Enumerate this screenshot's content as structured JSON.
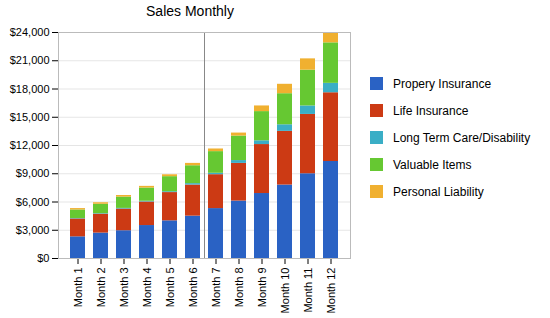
{
  "chart_data": {
    "type": "bar",
    "title": "Sales Monthly",
    "stacked": true,
    "grid": true,
    "legend": "right",
    "categories": [
      "Month 1",
      "Month 2",
      "Month 3",
      "Month 4",
      "Month 5",
      "Month 6",
      "Month 7",
      "Month 8",
      "Month 9",
      "Month 10",
      "Month 11",
      "Month 12"
    ],
    "series": [
      {
        "name": "Propery Insurance",
        "color": "#2a62c4",
        "values": [
          2300,
          2700,
          2950,
          3500,
          4000,
          4500,
          5300,
          6100,
          6900,
          7800,
          9000,
          10300
        ]
      },
      {
        "name": "Life Insurance",
        "color": "#cc3a14",
        "values": [
          1900,
          2000,
          2300,
          2500,
          3000,
          3300,
          3600,
          4000,
          5200,
          5700,
          6300,
          7300
        ]
      },
      {
        "name": "Long Term Care/Disability",
        "color": "#3aaec6",
        "values": [
          50,
          60,
          70,
          80,
          90,
          150,
          150,
          300,
          400,
          700,
          900,
          1000
        ]
      },
      {
        "name": "Valuable Items",
        "color": "#66c832",
        "values": [
          900,
          1000,
          1200,
          1400,
          1600,
          1900,
          2300,
          2600,
          3100,
          3300,
          3800,
          4300
        ]
      },
      {
        "name": "Personal Liability",
        "color": "#f0b030",
        "values": [
          150,
          160,
          170,
          180,
          200,
          250,
          280,
          320,
          600,
          1000,
          1200,
          1000
        ]
      }
    ],
    "ylim": [
      0,
      24000
    ],
    "yticks": [
      {
        "value": 0,
        "label": "$0"
      },
      {
        "value": 3000,
        "label": "$3,000"
      },
      {
        "value": 6000,
        "label": "$6,000"
      },
      {
        "value": 9000,
        "label": "$9,000"
      },
      {
        "value": 12000,
        "label": "$12,000"
      },
      {
        "value": 15000,
        "label": "$15,000"
      },
      {
        "value": 18000,
        "label": "$18,000"
      },
      {
        "value": 21000,
        "label": "$21,000"
      },
      {
        "value": 24000,
        "label": "$24,000"
      }
    ]
  }
}
